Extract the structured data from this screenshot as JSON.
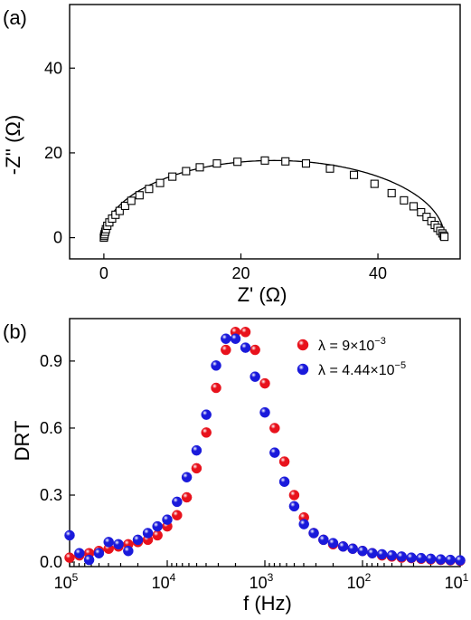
{
  "chart_data": [
    {
      "type": "scatter",
      "panel_label": "(a)",
      "xlabel": "Z' (Ω)",
      "ylabel": "-Z'' (Ω)",
      "xlim": [
        -5,
        52
      ],
      "ylim": [
        -5,
        55
      ],
      "x_ticks": [
        0,
        20,
        40
      ],
      "y_ticks": [
        0,
        20,
        40
      ],
      "grid": false,
      "marker": "open-square",
      "fit_line": "semicircle",
      "series": [
        {
          "x": [
            0.0,
            0.05,
            0.1,
            0.2,
            0.3,
            0.5,
            0.8,
            1.2,
            1.7,
            2.3,
            3.1,
            4.0,
            5.2,
            6.6,
            8.2,
            10.0,
            12.0,
            14.0,
            16.5,
            19.5,
            23.5,
            26.5,
            29.5,
            33.0,
            36.5,
            39.5,
            42.0,
            43.8,
            45.2,
            46.3,
            47.1,
            47.8,
            48.3,
            48.7,
            49.1,
            49.4,
            49.6,
            49.7
          ],
          "y": [
            0.0,
            0.4,
            0.8,
            1.4,
            2.0,
            2.8,
            3.6,
            4.5,
            5.4,
            6.3,
            7.5,
            8.7,
            10.0,
            11.5,
            12.9,
            14.4,
            15.7,
            16.6,
            17.5,
            17.9,
            18.2,
            18.0,
            17.5,
            16.3,
            14.8,
            12.7,
            10.5,
            8.8,
            7.4,
            6.0,
            4.9,
            3.9,
            3.0,
            2.3,
            1.6,
            1.0,
            0.5,
            0.2
          ]
        }
      ]
    },
    {
      "type": "scatter",
      "panel_label": "(b)",
      "xlabel": "f (Hz)",
      "ylabel": "DRT",
      "x_scale": "log",
      "x_reversed": true,
      "xlim": [
        100000,
        10
      ],
      "ylim": [
        -0.02,
        1.09
      ],
      "x_ticks": [
        100000,
        10000,
        1000,
        100,
        10
      ],
      "x_tick_labels": [
        {
          "base": "10",
          "exp": "5"
        },
        {
          "base": "10",
          "exp": "4"
        },
        {
          "base": "10",
          "exp": "3"
        },
        {
          "base": "10",
          "exp": "2"
        },
        {
          "base": "10",
          "exp": "1"
        }
      ],
      "y_ticks": [
        0.0,
        0.3,
        0.6,
        0.9
      ],
      "y_tick_labels": [
        "0.0",
        "0.3",
        "0.6",
        "0.9"
      ],
      "legend_position": "top-right",
      "grid": false,
      "series": [
        {
          "legend_label": {
            "prefix": "λ = 9×10",
            "exp": "−3"
          },
          "color": "#e8121c",
          "x": [
            100000,
            79400,
            63100,
            50100,
            39800,
            31600,
            25100,
            20000,
            15800,
            12600,
            10000,
            7940,
            6310,
            5010,
            3980,
            3160,
            2510,
            2000,
            1580,
            1260,
            1000,
            794,
            631,
            501,
            398,
            316,
            251,
            200,
            158,
            126,
            100,
            79.4,
            63.1,
            50.1,
            39.8,
            31.6,
            25.1,
            20.0,
            15.8,
            12.6,
            10.0
          ],
          "y": [
            0.02,
            0.03,
            0.04,
            0.05,
            0.06,
            0.07,
            0.08,
            0.09,
            0.1,
            0.12,
            0.16,
            0.21,
            0.29,
            0.42,
            0.58,
            0.78,
            0.95,
            1.03,
            1.03,
            0.95,
            0.8,
            0.6,
            0.45,
            0.3,
            0.2,
            0.13,
            0.1,
            0.08,
            0.07,
            0.06,
            0.05,
            0.04,
            0.03,
            0.025,
            0.02,
            0.018,
            0.015,
            0.012,
            0.01,
            0.008,
            0.006
          ]
        },
        {
          "legend_label": {
            "prefix": "λ = 4.44×10",
            "exp": "−5"
          },
          "color": "#1a1adb",
          "x": [
            100000,
            79400,
            63100,
            50100,
            39800,
            31600,
            25100,
            20000,
            15800,
            12600,
            10000,
            7940,
            6310,
            5010,
            3980,
            3160,
            2510,
            2000,
            1580,
            1260,
            1000,
            794,
            631,
            501,
            398,
            316,
            251,
            200,
            158,
            126,
            100,
            79.4,
            63.1,
            50.1,
            39.8,
            31.6,
            25.1,
            20.0,
            15.8,
            12.6,
            10.0
          ],
          "y": [
            0.12,
            0.04,
            0.01,
            0.04,
            0.09,
            0.08,
            0.05,
            0.1,
            0.13,
            0.16,
            0.19,
            0.27,
            0.38,
            0.5,
            0.66,
            0.88,
            1.0,
            1.0,
            0.96,
            0.83,
            0.67,
            0.49,
            0.36,
            0.25,
            0.17,
            0.13,
            0.1,
            0.085,
            0.07,
            0.06,
            0.05,
            0.04,
            0.035,
            0.03,
            0.025,
            0.02,
            0.018,
            0.015,
            0.012,
            0.01,
            0.008
          ]
        }
      ]
    }
  ]
}
